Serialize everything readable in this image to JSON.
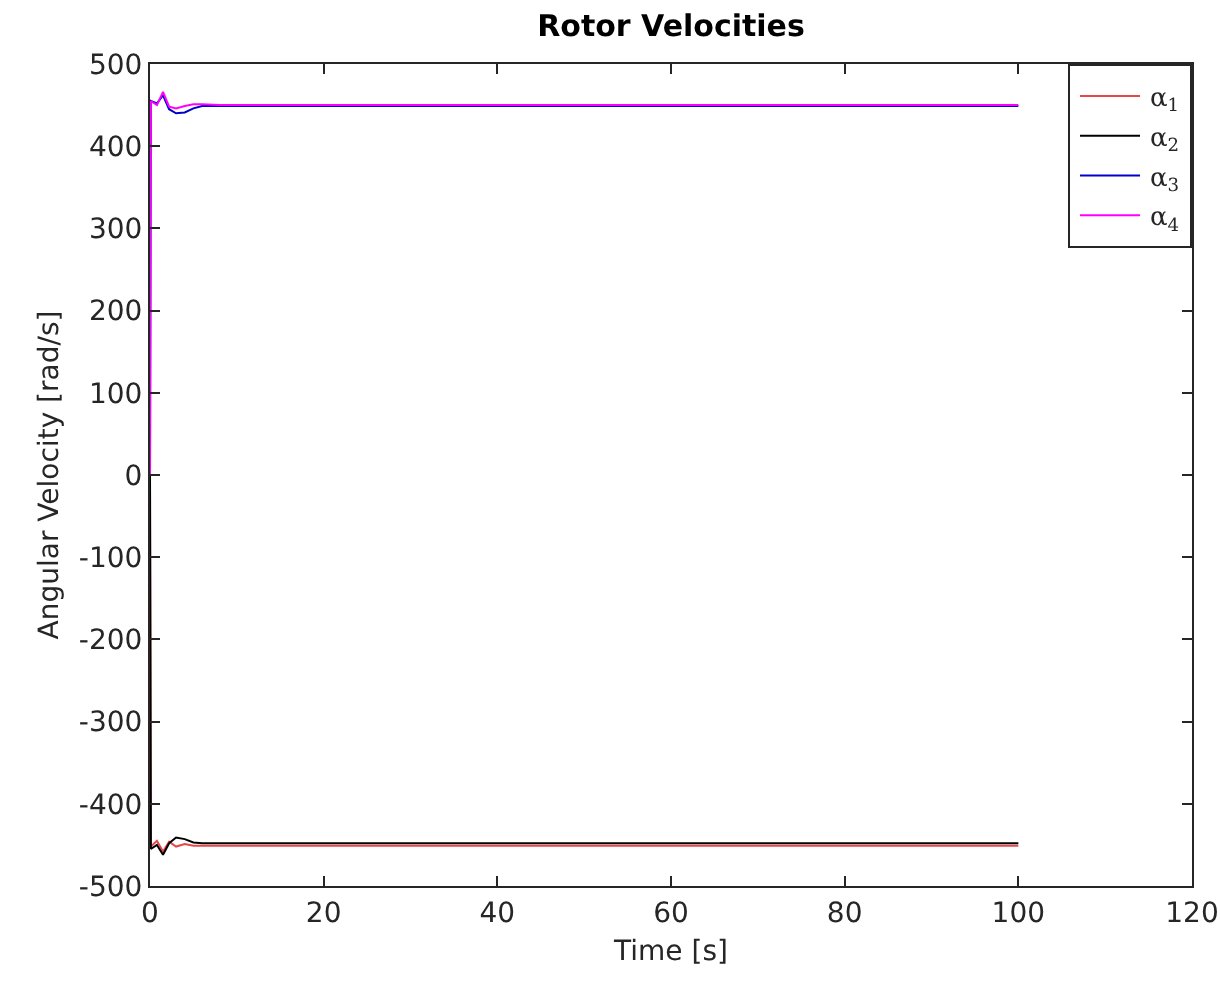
{
  "chart_data": {
    "type": "line",
    "title": "Rotor Velocities",
    "xlabel": "Time [s]",
    "ylabel": "Angular Velocity [rad/s]",
    "x": [
      0,
      0.1,
      0.8,
      1.5,
      2.2,
      3,
      4,
      5,
      6,
      8,
      100
    ],
    "series": [
      {
        "name": "α$_{1}$",
        "color": "#e8474a",
        "values": [
          0,
          -452,
          -445,
          -458,
          -446,
          -452,
          -449,
          -451,
          -451,
          -451,
          -451
        ]
      },
      {
        "name": "α$_{2}$",
        "color": "#000000",
        "values": [
          0,
          -455,
          -450,
          -462,
          -448,
          -441,
          -443,
          -447,
          -448,
          -448,
          -448
        ]
      },
      {
        "name": "α$_{3}$",
        "color": "#0000cc",
        "values": [
          0,
          455,
          452,
          462,
          445,
          440,
          441,
          446,
          449,
          449,
          449
        ]
      },
      {
        "name": "α$_{4}$",
        "color": "#ff00ff",
        "values": [
          0,
          455,
          450,
          466,
          448,
          446,
          449,
          451,
          451,
          450,
          450
        ]
      }
    ],
    "xlim": [
      0,
      120
    ],
    "xticks": [
      0,
      20,
      40,
      60,
      80,
      100,
      120
    ],
    "ylim": [
      -500,
      500
    ],
    "yticks": [
      -500,
      -400,
      -300,
      -200,
      -100,
      0,
      100,
      200,
      300,
      400,
      500
    ],
    "grid": false,
    "legend": "top right",
    "marker": "none",
    "line_style": "solid"
  }
}
